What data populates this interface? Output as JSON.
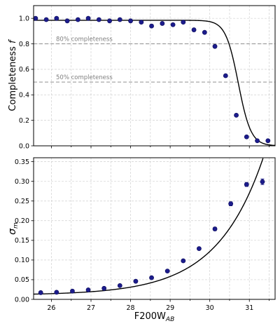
{
  "chart_data": [
    {
      "type": "scatter",
      "xlabel": "",
      "ylabel": "Completeness f",
      "xlim": [
        25.55,
        31.65
      ],
      "ylim": [
        0.0,
        1.1
      ],
      "grid": true,
      "yticks": [
        "0.0",
        "0.2",
        "0.4",
        "0.6",
        "0.8",
        "1.0"
      ],
      "xticks_labeled": false,
      "reference_lines": [
        {
          "y": 0.8,
          "label": "80% completeness"
        },
        {
          "y": 0.5,
          "label": "50% completeness"
        }
      ],
      "series": [
        {
          "kind": "points",
          "x": [
            25.6,
            25.87,
            26.13,
            26.4,
            26.67,
            26.93,
            27.2,
            27.47,
            27.73,
            28.0,
            28.27,
            28.53,
            28.8,
            29.07,
            29.33,
            29.6,
            29.87,
            30.13,
            30.4,
            30.67,
            30.93,
            31.2,
            31.47
          ],
          "y": [
            1.0,
            0.99,
            1.0,
            0.98,
            0.99,
            1.0,
            0.99,
            0.98,
            0.99,
            0.98,
            0.97,
            0.94,
            0.96,
            0.95,
            0.97,
            0.91,
            0.89,
            0.78,
            0.55,
            0.24,
            0.07,
            0.04,
            0.04
          ],
          "color": "#1c1c8c"
        },
        {
          "kind": "fit-curve",
          "model": "f = 0.985 / (1 + exp((m - 30.72) / 0.16))",
          "color": "#000000"
        }
      ]
    },
    {
      "type": "scatter",
      "xlabel": "F200W_AB",
      "ylabel": "σ_m",
      "xlim": [
        25.55,
        31.65
      ],
      "ylim": [
        0.0,
        0.36
      ],
      "grid": true,
      "xticks": [
        "26",
        "27",
        "28",
        "29",
        "30",
        "31"
      ],
      "yticks": [
        "0.00",
        "0.05",
        "0.10",
        "0.15",
        "0.20",
        "0.25",
        "0.30",
        "0.35"
      ],
      "series": [
        {
          "kind": "points-with-errorbars",
          "x": [
            25.73,
            26.13,
            26.53,
            26.93,
            27.33,
            27.73,
            28.13,
            28.53,
            28.93,
            29.33,
            29.73,
            30.13,
            30.53,
            30.93,
            31.33
          ],
          "y": [
            0.017,
            0.018,
            0.021,
            0.024,
            0.028,
            0.035,
            0.046,
            0.055,
            0.072,
            0.098,
            0.129,
            0.179,
            0.243,
            0.292,
            0.299
          ],
          "yerr": [
            0.002,
            0.002,
            0.002,
            0.002,
            0.002,
            0.002,
            0.002,
            0.002,
            0.002,
            0.003,
            0.003,
            0.004,
            0.005,
            0.005,
            0.007
          ],
          "color": "#1c1c8c"
        },
        {
          "kind": "fit-curve",
          "model": "sigma = 0.0108 + 0.0037 * exp(0.85 * (m - 26))",
          "color": "#000000"
        }
      ]
    }
  ]
}
